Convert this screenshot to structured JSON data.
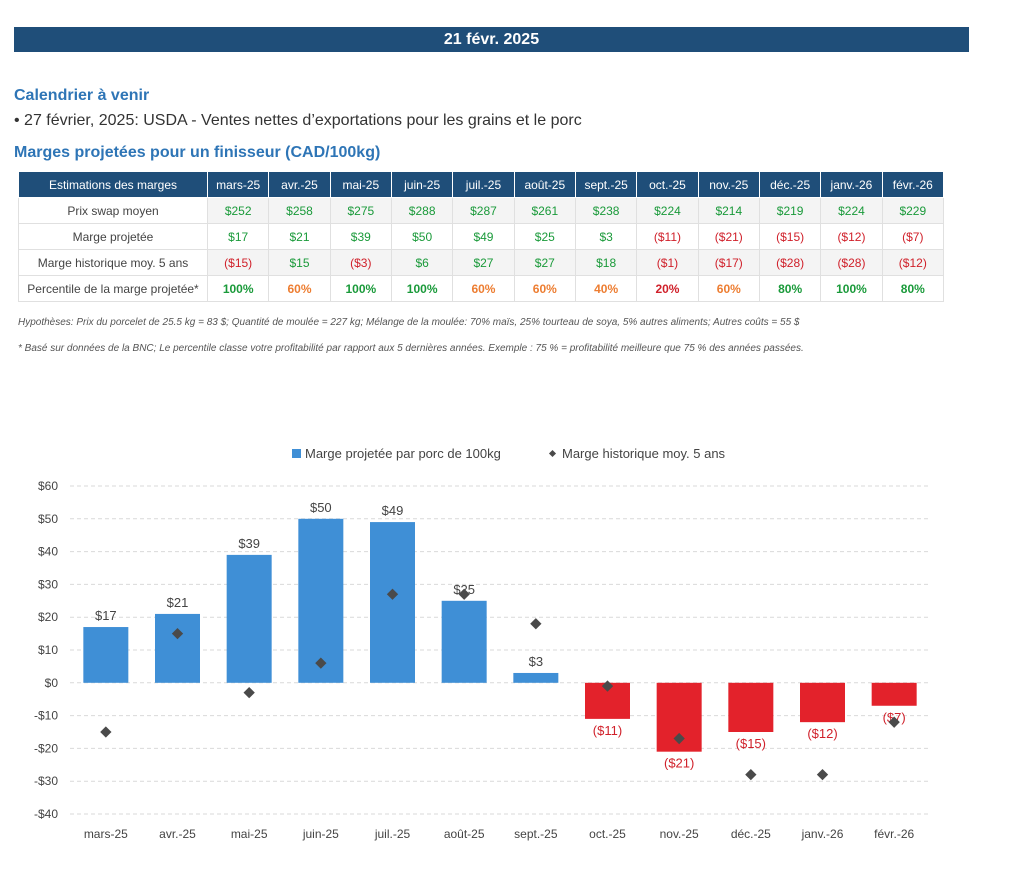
{
  "header": {
    "date": "21 févr. 2025"
  },
  "calendar": {
    "title": "Calendrier à venir",
    "event": "• 27 février, 2025: USDA - Ventes nettes d’exportations pour les grains et le porc"
  },
  "margins": {
    "title": "Marges projetées pour un finisseur (CAD/100kg)",
    "table": {
      "corner_label": "Estimations des marges",
      "months": [
        "mars-25",
        "avr.-25",
        "mai-25",
        "juin-25",
        "juil.-25",
        "août-25",
        "sept.-25",
        "oct.-25",
        "nov.-25",
        "déc.-25",
        "janv.-26",
        "févr.-26"
      ],
      "rows": [
        {
          "label": "Prix swap moyen",
          "cells": [
            "$252",
            "$258",
            "$275",
            "$288",
            "$287",
            "$261",
            "$238",
            "$224",
            "$214",
            "$219",
            "$224",
            "$229"
          ],
          "colors": [
            "pos",
            "pos",
            "pos",
            "pos",
            "pos",
            "pos",
            "pos",
            "pos",
            "pos",
            "pos",
            "pos",
            "pos"
          ]
        },
        {
          "label": "Marge projetée",
          "cells": [
            "$17",
            "$21",
            "$39",
            "$50",
            "$49",
            "$25",
            "$3",
            "($11)",
            "($21)",
            "($15)",
            "($12)",
            "($7)"
          ],
          "colors": [
            "pos",
            "pos",
            "pos",
            "pos",
            "pos",
            "pos",
            "pos",
            "neg",
            "neg",
            "neg",
            "neg",
            "neg"
          ]
        },
        {
          "label": "Marge historique moy. 5 ans",
          "cells": [
            "($15)",
            "$15",
            "($3)",
            "$6",
            "$27",
            "$27",
            "$18",
            "($1)",
            "($17)",
            "($28)",
            "($28)",
            "($12)"
          ],
          "colors": [
            "neg",
            "pos",
            "neg",
            "pos",
            "pos",
            "pos",
            "pos",
            "neg",
            "neg",
            "neg",
            "neg",
            "neg"
          ]
        },
        {
          "label": "Percentile de la marge projetée*",
          "cells": [
            "100%",
            "60%",
            "100%",
            "100%",
            "60%",
            "60%",
            "40%",
            "20%",
            "60%",
            "80%",
            "100%",
            "80%"
          ],
          "colors": [
            "pct-green",
            "pct-orange",
            "pct-green",
            "pct-green",
            "pct-orange",
            "pct-orange",
            "pct-orange",
            "pct-red",
            "pct-orange",
            "pct-green",
            "pct-green",
            "pct-green"
          ]
        }
      ]
    },
    "hypotheses": "Hypothèses: Prix du porcelet de 25.5 kg = 83 $; Quantité de moulée = 227 kg; Mélange de la moulée: 70% maïs, 25% tourteau de soya, 5% autres aliments; Autres coûts = 55 $",
    "bnc_note": "* Basé sur données de la BNC; Le percentile classe votre profitabilité par rapport aux 5 dernières années. Exemple : 75 % = profitabilité meilleure que 75 % des années passées."
  },
  "colors": {
    "positive_bar": "#3f8fd6",
    "negative_bar": "#e3222b",
    "marker": "#4a4a4a",
    "banner": "#1f4e79"
  },
  "chart_data": {
    "type": "bar",
    "categories": [
      "mars-25",
      "avr.-25",
      "mai-25",
      "juin-25",
      "juil.-25",
      "août-25",
      "sept.-25",
      "oct.-25",
      "nov.-25",
      "déc.-25",
      "janv.-26",
      "févr.-26"
    ],
    "series": [
      {
        "name": "Marge projetée par porc de 100kg",
        "type": "bar",
        "values": [
          17,
          21,
          39,
          50,
          49,
          25,
          3,
          -11,
          -21,
          -15,
          -12,
          -7
        ],
        "labels": [
          "$17",
          "$21",
          "$39",
          "$50",
          "$49",
          "$25",
          "$3",
          "($11)",
          "($21)",
          "($15)",
          "($12)",
          "($7)"
        ]
      },
      {
        "name": "Marge historique moy. 5 ans",
        "type": "scatter",
        "values": [
          -15,
          15,
          -3,
          6,
          27,
          27,
          18,
          -1,
          -17,
          -28,
          -28,
          -12
        ]
      }
    ],
    "ylim": [
      -40,
      60
    ],
    "yticks": [
      60,
      50,
      40,
      30,
      20,
      10,
      0,
      -10,
      -20,
      -30,
      -40
    ],
    "ytick_labels": [
      "$60",
      "$50",
      "$40",
      "$30",
      "$20",
      "$10",
      "$0",
      "-$10",
      "-$20",
      "-$30",
      "-$40"
    ],
    "grid": true,
    "legend": "top-center"
  }
}
